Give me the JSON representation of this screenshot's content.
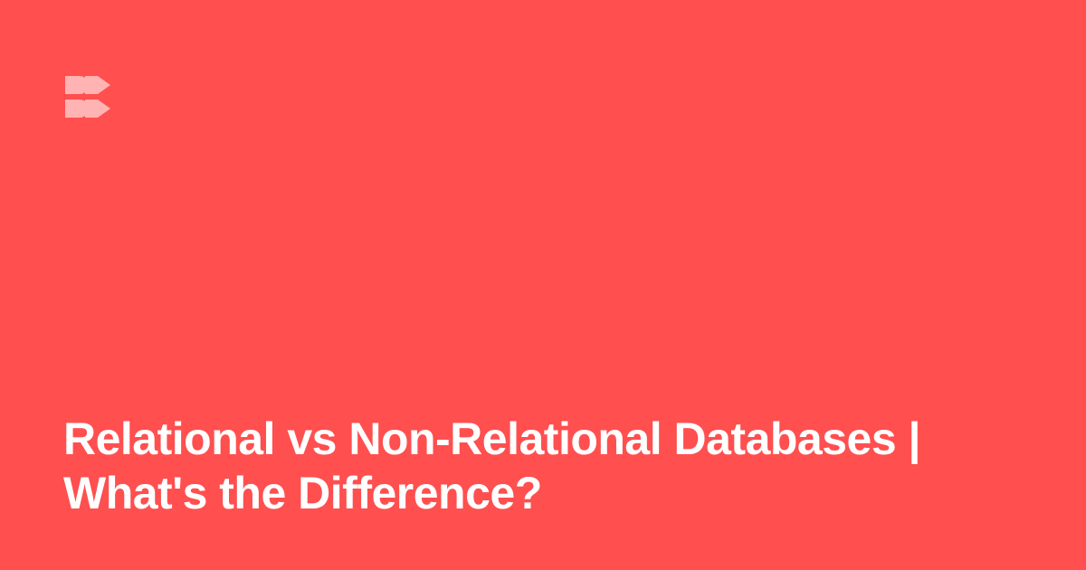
{
  "colors": {
    "background": "#ff4f4f",
    "logo": "#ffb3b3",
    "text": "#ffffff"
  },
  "logo": {
    "icon": "double-arrow-brand-icon"
  },
  "headline": {
    "line1": "Relational vs Non-Relational Databases |",
    "line2": "What's the Difference?"
  }
}
